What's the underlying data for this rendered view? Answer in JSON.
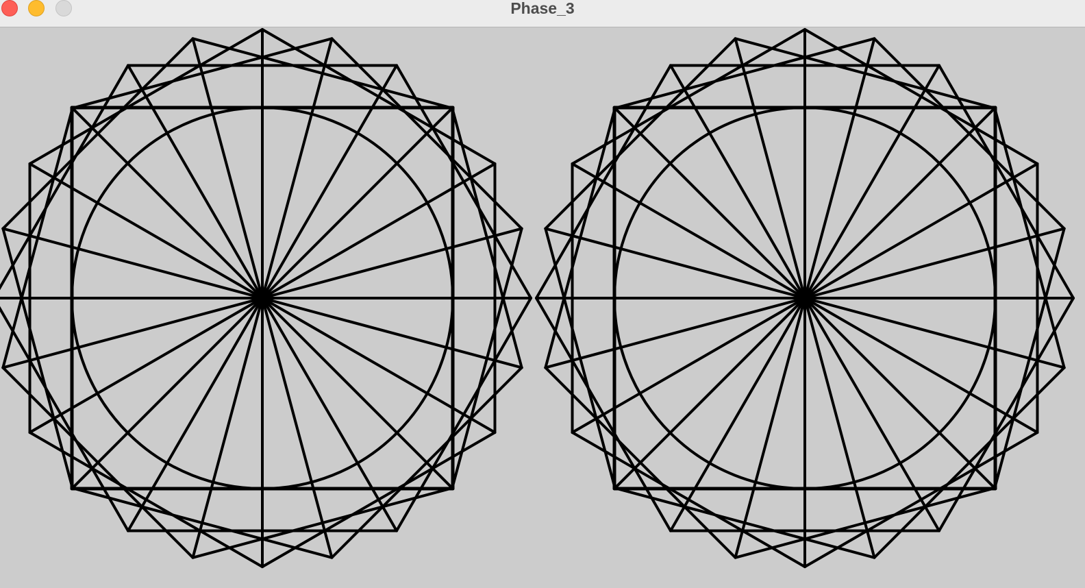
{
  "window": {
    "title": "Phase_3",
    "background_color": "#cccccc",
    "stroke_color": "#000000"
  },
  "controls": {
    "close": "close-icon",
    "minimize": "minimize-icon",
    "zoom": "zoom-icon"
  }
}
